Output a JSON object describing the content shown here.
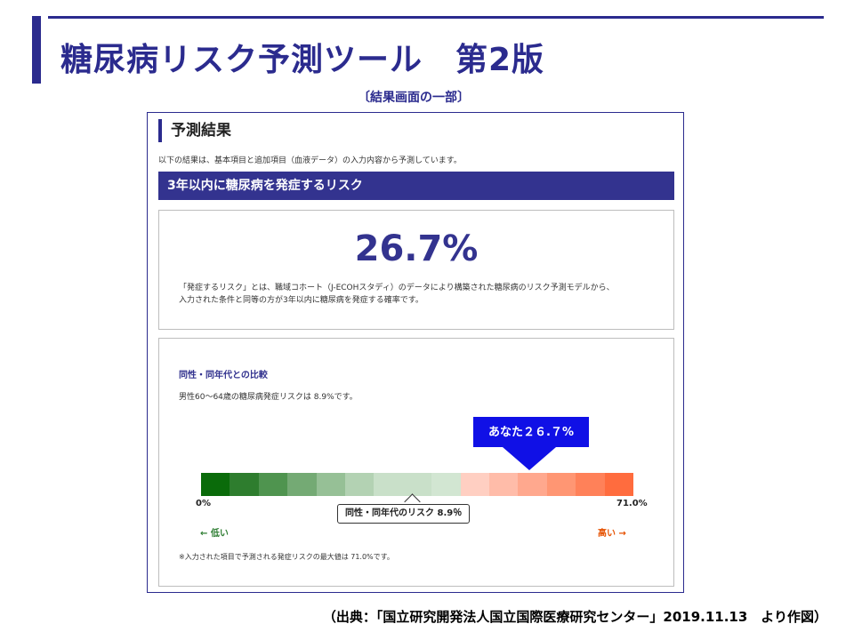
{
  "slide": {
    "title": "糖尿病リスク予測ツール　第2版",
    "caption": "〔結果画面の一部〕",
    "source": "（出典：「国立研究開発法人国立国際医療研究センター」2019.11.13　より作図）"
  },
  "panel": {
    "heading": "予測結果",
    "intro": "以下の結果は、基本項目と追加項目（血液データ）の入力内容から予測しています。",
    "banner": "3年以内に糖尿病を発症するリスク",
    "result_value": "26.7%",
    "result_desc_line1": "「発症するリスク」とは、職域コホート（J-ECOHスタディ）のデータにより構築された糖尿病のリスク予測モデルから、",
    "result_desc_line2": "入力された条件と同等の方が3年以内に糖尿病を発症する確率です。",
    "compare_title": "同性・同年代との比較",
    "compare_desc": "男性60～64歳の糖尿病発症リスクは 8.9%です。",
    "you_label": "あなた２６.７%",
    "scale_min": "0%",
    "scale_max": "71.0%",
    "avg_label": "同性・同年代のリスク 8.9％",
    "low_label": "← 低い",
    "high_label": "高い →",
    "note": "※入力された項目で予測される発症リスクの最大値は 71.0%です。"
  },
  "scale_colors": [
    "#0a6b0a",
    "#2e7d2e",
    "#4f944f",
    "#74aa74",
    "#96c096",
    "#b3d2b3",
    "#c9e0c9",
    "#c9e0c9",
    "#d2e6d2",
    "#ffcfc2",
    "#ffbca9",
    "#ffa88e",
    "#ff9673",
    "#ff8159",
    "#ff6c3e"
  ],
  "colors": {
    "accent": "#33338f",
    "callout": "#1010e6"
  }
}
